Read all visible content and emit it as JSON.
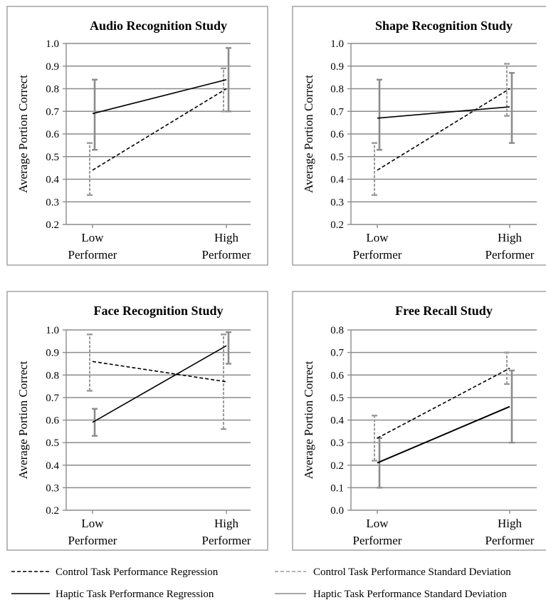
{
  "colors": {
    "control_line": "#000000",
    "haptic_line": "#000000",
    "control_sd": "#9a9a9a",
    "haptic_sd": "#8c8c8c",
    "grid": "#8c8c8c"
  },
  "legend": {
    "control_regression": "Control Task Performance Regression",
    "haptic_regression": "Haptic Task Performance Regression",
    "control_sd": "Control Task Performance Standard Deviation",
    "haptic_sd": "Haptic Task Performance Standard Deviation"
  },
  "chart_data": [
    {
      "type": "line",
      "title": "Audio Recognition Study",
      "ylabel": "Average Portion Correct",
      "categories": [
        [
          "Low",
          "Performer"
        ],
        [
          "High",
          "Performer"
        ]
      ],
      "ylim": [
        0.2,
        1.0
      ],
      "yticks": [
        "0.2",
        "0.3",
        "0.4",
        "0.5",
        "0.6",
        "0.7",
        "0.8",
        "0.9",
        "1.0"
      ],
      "grid": true,
      "series": [
        {
          "key": "control",
          "values": [
            0.44,
            0.8
          ],
          "sd_low": [
            0.33,
            0.7
          ],
          "sd_high": [
            0.56,
            0.89
          ]
        },
        {
          "key": "haptic",
          "values": [
            0.69,
            0.84
          ],
          "sd_low": [
            0.53,
            0.7
          ],
          "sd_high": [
            0.84,
            0.98
          ]
        }
      ]
    },
    {
      "type": "line",
      "title": "Shape Recognition Study",
      "ylabel": "Average Portion Correct",
      "categories": [
        [
          "Low",
          "Performer"
        ],
        [
          "High",
          "Performer"
        ]
      ],
      "ylim": [
        0.2,
        1.0
      ],
      "yticks": [
        "0.2",
        "0.3",
        "0.4",
        "0.5",
        "0.6",
        "0.7",
        "0.8",
        "0.9",
        "1.0"
      ],
      "grid": true,
      "series": [
        {
          "key": "control",
          "values": [
            0.44,
            0.8
          ],
          "sd_low": [
            0.33,
            0.68
          ],
          "sd_high": [
            0.56,
            0.91
          ]
        },
        {
          "key": "haptic",
          "values": [
            0.67,
            0.72
          ],
          "sd_low": [
            0.53,
            0.56
          ],
          "sd_high": [
            0.84,
            0.87
          ]
        }
      ]
    },
    {
      "type": "line",
      "title": "Face Recognition Study",
      "ylabel": "Average Portion Correct",
      "categories": [
        [
          "Low",
          "Performer"
        ],
        [
          "High",
          "Performer"
        ]
      ],
      "ylim": [
        0.2,
        1.0
      ],
      "yticks": [
        "0.2",
        "0.3",
        "0.4",
        "0.5",
        "0.6",
        "0.7",
        "0.8",
        "0.9",
        "1.0"
      ],
      "grid": true,
      "series": [
        {
          "key": "control",
          "values": [
            0.86,
            0.77
          ],
          "sd_low": [
            0.73,
            0.56
          ],
          "sd_high": [
            0.98,
            0.98
          ]
        },
        {
          "key": "haptic",
          "values": [
            0.59,
            0.93
          ],
          "sd_low": [
            0.53,
            0.85
          ],
          "sd_high": [
            0.65,
            0.99
          ]
        }
      ]
    },
    {
      "type": "line",
      "title": "Free Recall Study",
      "ylabel": "Average Portion Correct",
      "categories": [
        [
          "Low",
          "Performer"
        ],
        [
          "High",
          "Performer"
        ]
      ],
      "ylim": [
        0.0,
        0.8
      ],
      "yticks": [
        "0.0",
        "0.1",
        "0.2",
        "0.3",
        "0.4",
        "0.5",
        "0.6",
        "0.7",
        "0.8"
      ],
      "grid": true,
      "series": [
        {
          "key": "control",
          "values": [
            0.32,
            0.63
          ],
          "sd_low": [
            0.22,
            0.56
          ],
          "sd_high": [
            0.42,
            0.7
          ]
        },
        {
          "key": "haptic",
          "values": [
            0.21,
            0.46
          ],
          "sd_low": [
            0.1,
            0.3
          ],
          "sd_high": [
            0.32,
            0.62
          ]
        }
      ]
    }
  ]
}
